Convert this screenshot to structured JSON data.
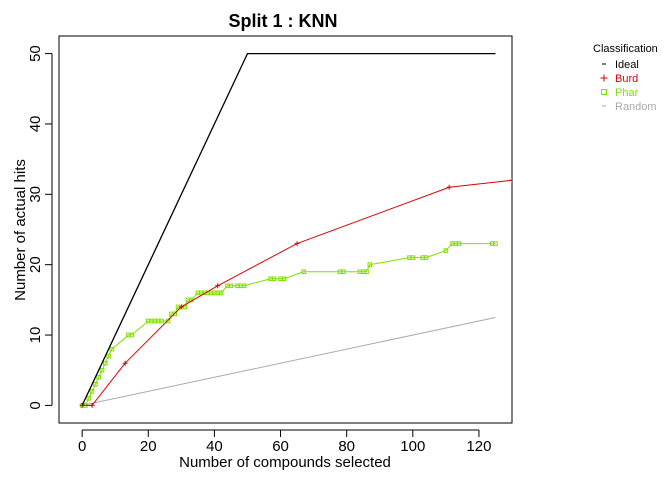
{
  "chart_data": {
    "type": "line",
    "title": "Split 1 : KNN",
    "xlabel": "Number of compounds selected",
    "ylabel": "Number of actual hits",
    "xlim": [
      -7,
      130
    ],
    "ylim": [
      -2.5,
      52.5
    ],
    "xticks": [
      0,
      20,
      40,
      60,
      80,
      100,
      120
    ],
    "yticks": [
      0,
      10,
      20,
      30,
      40,
      50
    ],
    "grid": false,
    "legend": {
      "title": "Classification",
      "position": "top-right"
    },
    "series": [
      {
        "name": "Ideal",
        "color": "#000000",
        "marker": "none",
        "x": [
          0,
          50,
          125
        ],
        "y": [
          0,
          50,
          50
        ]
      },
      {
        "name": "Burd",
        "color": "#dd0000",
        "marker": "plus",
        "x": [
          0,
          3,
          13,
          30,
          41,
          65,
          111,
          130
        ],
        "y": [
          0,
          0,
          6,
          14,
          17,
          23,
          31,
          32
        ]
      },
      {
        "name": "Phar",
        "color": "#7fe000",
        "marker": "square",
        "x": [
          0,
          1,
          2,
          3,
          4,
          5,
          6,
          7,
          8,
          9,
          14,
          15,
          20,
          21,
          22,
          23,
          24,
          26,
          27,
          28,
          29,
          31,
          32,
          33,
          35,
          36,
          37,
          38,
          39,
          40,
          41,
          42,
          44,
          45,
          47,
          48,
          49,
          57,
          58,
          60,
          61,
          67,
          78,
          79,
          84,
          85,
          86,
          87,
          99,
          100,
          103,
          104,
          110,
          112,
          113,
          114,
          124,
          125
        ],
        "y": [
          0,
          0,
          1,
          2,
          3,
          4,
          5,
          6,
          7,
          8,
          10,
          10,
          12,
          12,
          12,
          12,
          12,
          12,
          13,
          13,
          14,
          14,
          15,
          15,
          16,
          16,
          16,
          16,
          16,
          16,
          16,
          16,
          17,
          17,
          17,
          17,
          17,
          18,
          18,
          18,
          18,
          19,
          19,
          19,
          19,
          19,
          19,
          20,
          21,
          21,
          21,
          21,
          22,
          23,
          23,
          23,
          23,
          23
        ]
      },
      {
        "name": "Random",
        "color": "#aaaaaa",
        "marker": "none",
        "x": [
          0,
          125
        ],
        "y": [
          0,
          12.5
        ]
      }
    ]
  }
}
